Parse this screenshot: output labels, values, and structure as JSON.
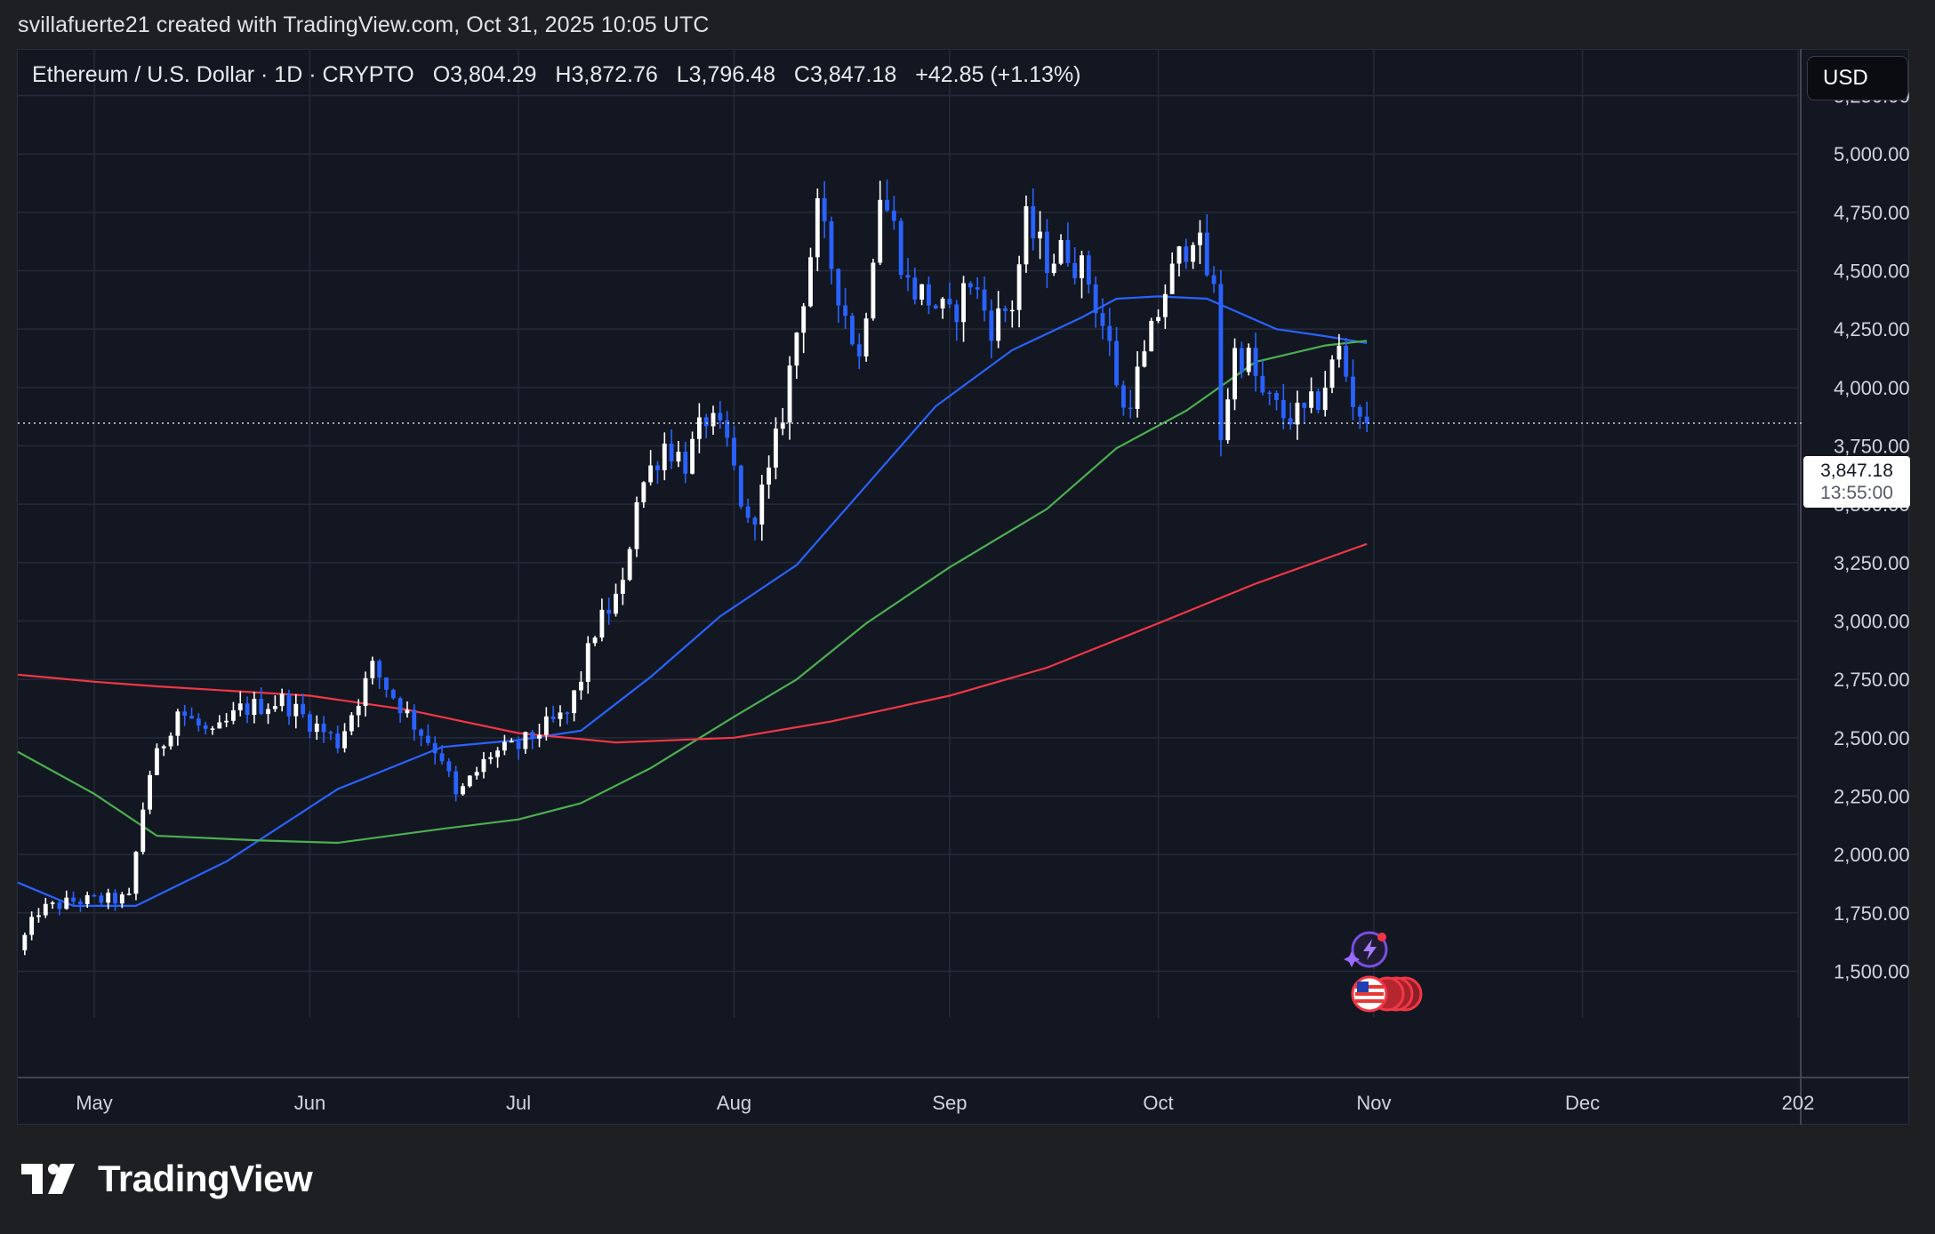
{
  "header": {
    "attribution": "svillafuerte21 created with TradingView.com, Oct 31, 2025 10:05 UTC"
  },
  "legend": {
    "symbol": "Ethereum / U.S. Dollar · 1D · CRYPTO",
    "open": "O3,804.29",
    "high": "H3,872.76",
    "low": "L3,796.48",
    "close": "C3,847.18",
    "change": "+42.85 (+1.13%)"
  },
  "currency_button": "USD",
  "last_price": {
    "price": "3,847.18",
    "countdown": "13:55:00"
  },
  "brand": {
    "name": "TradingView"
  },
  "icons": [
    "tradingview-logo-icon",
    "lightning-event-icon",
    "us-flag-event-icon"
  ],
  "colors": {
    "background": "#131722",
    "up_candle": "#ffffff",
    "down_candle": "#2962ff",
    "ma_blue": "#2962ff",
    "ma_green": "#4caf50",
    "ma_red": "#f23645"
  },
  "chart_data": {
    "type": "candlestick",
    "title": "Ethereum / U.S. Dollar · 1D · CRYPTO",
    "x_range": [
      "2025-04-20",
      "2026-01-01"
    ],
    "y_range": [
      1300,
      5450
    ],
    "y_ticks": [
      1500,
      1750,
      2000,
      2250,
      2500,
      2750,
      3000,
      3250,
      3500,
      3750,
      4000,
      4250,
      4500,
      4750,
      5000,
      5250
    ],
    "y_tick_labels": [
      "1,500.00",
      "1,750.00",
      "2,000.00",
      "2,250.00",
      "2,500.00",
      "2,750.00",
      "3,000.00",
      "3,250.00",
      "3,500.00",
      "3,750.00",
      "4,000.00",
      "4,250.00",
      "4,500.00",
      "4,750.00",
      "5,000.00",
      "5,250.00"
    ],
    "x_ticks": [
      "2025-05-01",
      "2025-06-01",
      "2025-07-01",
      "2025-08-01",
      "2025-09-01",
      "2025-10-01",
      "2025-11-01",
      "2025-12-01",
      "2026-01-01"
    ],
    "x_tick_labels": [
      "May",
      "Jun",
      "Jul",
      "Aug",
      "Sep",
      "Oct",
      "Nov",
      "Dec",
      "202"
    ],
    "grid": true,
    "last_price": 3847.18,
    "price_anchors": [
      [
        "2025-04-20",
        1590
      ],
      [
        "2025-04-23",
        1760
      ],
      [
        "2025-04-28",
        1800
      ],
      [
        "2025-05-06",
        1810
      ],
      [
        "2025-05-08",
        2200
      ],
      [
        "2025-05-09",
        2350
      ],
      [
        "2025-05-13",
        2620
      ],
      [
        "2025-05-18",
        2500
      ],
      [
        "2025-05-22",
        2620
      ],
      [
        "2025-05-28",
        2660
      ],
      [
        "2025-06-05",
        2480
      ],
      [
        "2025-06-10",
        2800
      ],
      [
        "2025-06-16",
        2560
      ],
      [
        "2025-06-20",
        2420
      ],
      [
        "2025-06-22",
        2240
      ],
      [
        "2025-06-27",
        2430
      ],
      [
        "2025-07-01",
        2460
      ],
      [
        "2025-07-04",
        2530
      ],
      [
        "2025-07-08",
        2600
      ],
      [
        "2025-07-10",
        2760
      ],
      [
        "2025-07-12",
        2960
      ],
      [
        "2025-07-16",
        3140
      ],
      [
        "2025-07-18",
        3540
      ],
      [
        "2025-07-22",
        3760
      ],
      [
        "2025-07-25",
        3680
      ],
      [
        "2025-07-28",
        3870
      ],
      [
        "2025-07-31",
        3760
      ],
      [
        "2025-08-03",
        3400
      ],
      [
        "2025-08-06",
        3620
      ],
      [
        "2025-08-08",
        3900
      ],
      [
        "2025-08-10",
        4240
      ],
      [
        "2025-08-13",
        4740
      ],
      [
        "2025-08-16",
        4420
      ],
      [
        "2025-08-19",
        4120
      ],
      [
        "2025-08-22",
        4840
      ],
      [
        "2025-08-24",
        4680
      ],
      [
        "2025-08-26",
        4440
      ],
      [
        "2025-08-29",
        4380
      ],
      [
        "2025-09-01",
        4290
      ],
      [
        "2025-09-04",
        4460
      ],
      [
        "2025-09-07",
        4270
      ],
      [
        "2025-09-10",
        4360
      ],
      [
        "2025-09-12",
        4700
      ],
      [
        "2025-09-15",
        4550
      ],
      [
        "2025-09-18",
        4590
      ],
      [
        "2025-09-21",
        4460
      ],
      [
        "2025-09-24",
        4170
      ],
      [
        "2025-09-26",
        3900
      ],
      [
        "2025-09-29",
        4120
      ],
      [
        "2025-10-02",
        4420
      ],
      [
        "2025-10-06",
        4680
      ],
      [
        "2025-10-09",
        4400
      ],
      [
        "2025-10-10",
        3800
      ],
      [
        "2025-10-12",
        4150
      ],
      [
        "2025-10-14",
        4120
      ],
      [
        "2025-10-16",
        3960
      ],
      [
        "2025-10-19",
        3880
      ],
      [
        "2025-10-22",
        3880
      ],
      [
        "2025-10-24",
        3950
      ],
      [
        "2025-10-27",
        4160
      ],
      [
        "2025-10-29",
        3950
      ],
      [
        "2025-10-31",
        3847.18
      ]
    ],
    "series": [
      {
        "type": "line",
        "color": "#2962ff",
        "points": [
          [
            "2025-04-20",
            1880
          ],
          [
            "2025-04-28",
            1780
          ],
          [
            "2025-05-07",
            1780
          ],
          [
            "2025-05-20",
            1970
          ],
          [
            "2025-06-05",
            2280
          ],
          [
            "2025-06-20",
            2460
          ],
          [
            "2025-07-01",
            2490
          ],
          [
            "2025-07-10",
            2530
          ],
          [
            "2025-07-20",
            2760
          ],
          [
            "2025-07-30",
            3020
          ],
          [
            "2025-08-10",
            3240
          ],
          [
            "2025-08-20",
            3580
          ],
          [
            "2025-08-30",
            3920
          ],
          [
            "2025-09-10",
            4160
          ],
          [
            "2025-09-20",
            4300
          ],
          [
            "2025-09-25",
            4380
          ],
          [
            "2025-10-01",
            4390
          ],
          [
            "2025-10-08",
            4380
          ],
          [
            "2025-10-18",
            4250
          ],
          [
            "2025-10-25",
            4220
          ],
          [
            "2025-10-31",
            4190
          ]
        ]
      },
      {
        "type": "line",
        "color": "#4caf50",
        "points": [
          [
            "2025-04-20",
            2440
          ],
          [
            "2025-05-01",
            2260
          ],
          [
            "2025-05-10",
            2080
          ],
          [
            "2025-05-25",
            2060
          ],
          [
            "2025-06-05",
            2050
          ],
          [
            "2025-06-20",
            2110
          ],
          [
            "2025-07-01",
            2150
          ],
          [
            "2025-07-10",
            2220
          ],
          [
            "2025-07-20",
            2370
          ],
          [
            "2025-08-01",
            2590
          ],
          [
            "2025-08-10",
            2750
          ],
          [
            "2025-08-20",
            2990
          ],
          [
            "2025-09-01",
            3230
          ],
          [
            "2025-09-15",
            3480
          ],
          [
            "2025-09-25",
            3740
          ],
          [
            "2025-10-05",
            3900
          ],
          [
            "2025-10-15",
            4110
          ],
          [
            "2025-10-25",
            4180
          ],
          [
            "2025-10-31",
            4200
          ]
        ]
      },
      {
        "type": "line",
        "color": "#f23645",
        "points": [
          [
            "2025-04-20",
            2770
          ],
          [
            "2025-05-01",
            2740
          ],
          [
            "2025-05-10",
            2720
          ],
          [
            "2025-06-01",
            2680
          ],
          [
            "2025-06-15",
            2620
          ],
          [
            "2025-07-01",
            2520
          ],
          [
            "2025-07-15",
            2480
          ],
          [
            "2025-08-01",
            2500
          ],
          [
            "2025-08-15",
            2570
          ],
          [
            "2025-09-01",
            2680
          ],
          [
            "2025-09-15",
            2800
          ],
          [
            "2025-10-01",
            2990
          ],
          [
            "2025-10-15",
            3160
          ],
          [
            "2025-10-31",
            3330
          ]
        ]
      }
    ]
  }
}
